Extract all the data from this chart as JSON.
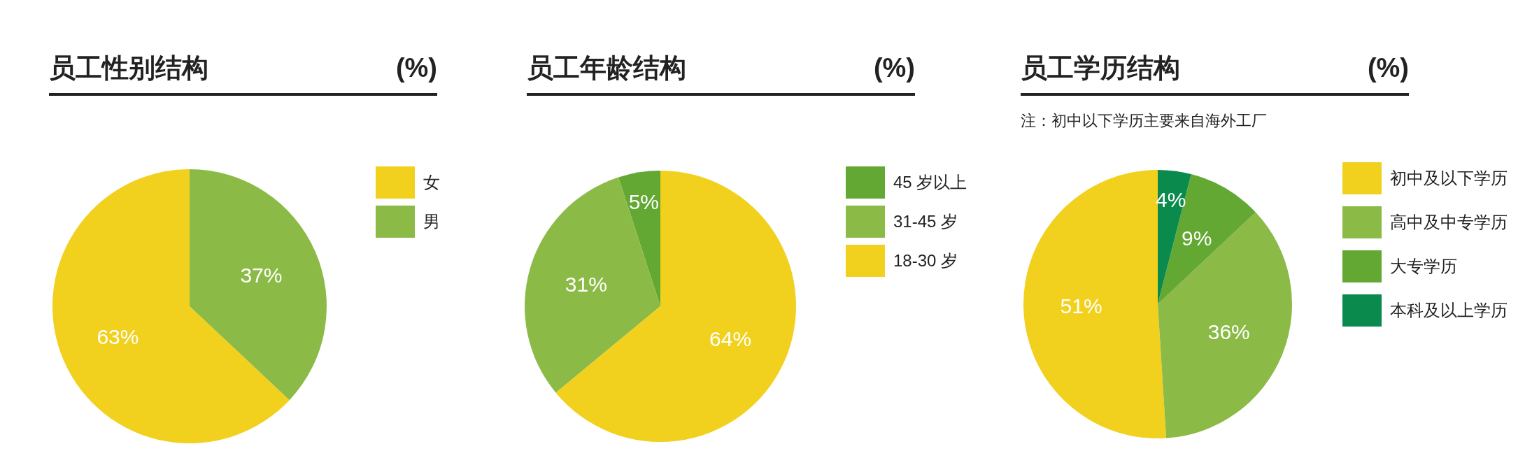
{
  "chart_data": [
    {
      "type": "pie",
      "title": "员工性别结构",
      "subtitle": "(%)",
      "categories": [
        "女",
        "男"
      ],
      "values": [
        63,
        37
      ],
      "colors": [
        "#f2d01e",
        "#8bbb46"
      ],
      "value_labels": [
        "63%",
        "37%"
      ],
      "legend": "right"
    },
    {
      "type": "pie",
      "title": "员工年龄结构",
      "subtitle": "(%)",
      "categories": [
        "45 岁以上",
        "31-45 岁",
        "18-30 岁"
      ],
      "values": [
        5,
        31,
        64
      ],
      "colors": [
        "#62a832",
        "#8bbb46",
        "#f2d01e"
      ],
      "value_labels": [
        "5%",
        "31%",
        "64%"
      ],
      "legend": "right"
    },
    {
      "type": "pie",
      "title": "员工学历结构",
      "subtitle": "(%)",
      "annotations": [
        "注：初中以下学历主要来自海外工厂"
      ],
      "categories": [
        "初中及以下学历",
        "高中及中专学历",
        "大专学历",
        "本科及以上学历"
      ],
      "values": [
        51,
        36,
        9,
        4
      ],
      "colors": [
        "#f2d01e",
        "#8bbb46",
        "#62a832",
        "#0b8a4e"
      ],
      "value_labels": [
        "51%",
        "36%",
        "9%",
        "4%"
      ],
      "legend": "right"
    }
  ]
}
